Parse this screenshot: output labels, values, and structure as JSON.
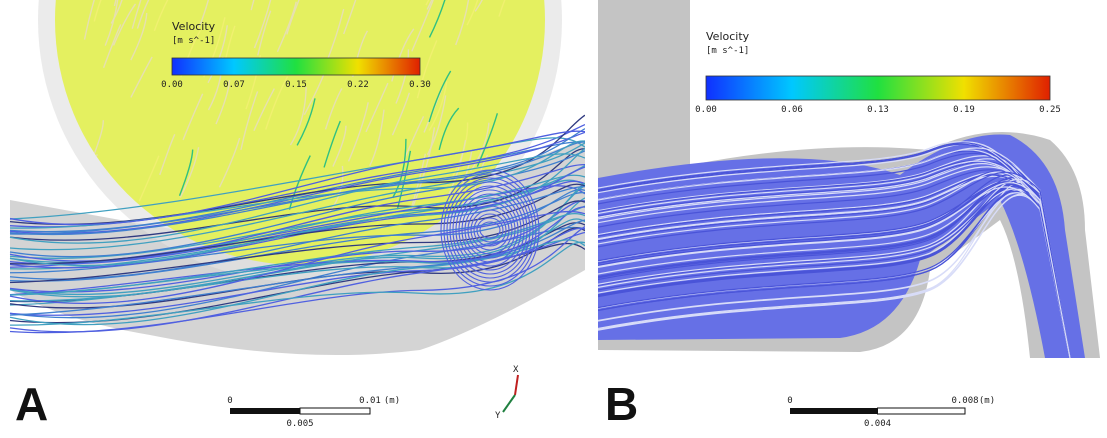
{
  "panels": [
    {
      "label": "A",
      "legend": {
        "title": "Velocity",
        "unit": "[m s^-1]",
        "ticks": [
          "0.00",
          "0.07",
          "0.15",
          "0.22",
          "0.30"
        ]
      },
      "scale_bar": {
        "start": "0",
        "end": "0.01",
        "unit": "(m)",
        "mid": "0.005"
      },
      "triad": [
        "X",
        "Y"
      ]
    },
    {
      "label": "B",
      "legend": {
        "title": "Velocity",
        "unit": "[m s^-1]",
        "ticks": [
          "0.00",
          "0.06",
          "0.13",
          "0.19",
          "0.25"
        ]
      },
      "scale_bar": {
        "start": "0",
        "end": "0.008",
        "unit": "(m)",
        "mid": "0.004"
      }
    }
  ]
}
